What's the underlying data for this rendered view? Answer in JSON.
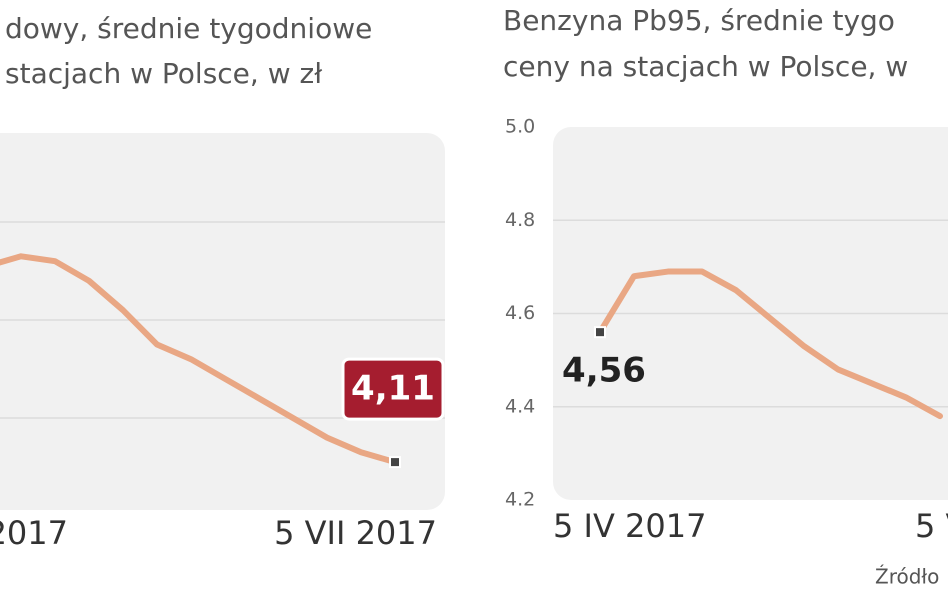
{
  "chart_data": [
    {
      "type": "line",
      "title": [
        "dowy, średnie tygodniowe",
        "stacjach w Polsce, w zł"
      ],
      "categories": [
        "2017",
        null,
        null,
        null,
        null,
        null,
        null,
        null,
        null,
        null,
        null,
        null,
        "5 VII 2017"
      ],
      "series": [
        {
          "color": "#e9a784",
          "values": [
            4.51,
            4.53,
            4.52,
            4.48,
            4.42,
            4.35,
            4.32,
            4.28,
            4.24,
            4.2,
            4.16,
            4.13,
            4.11
          ],
          "value_labels": [
            null,
            null,
            null,
            null,
            null,
            null,
            null,
            null,
            null,
            null,
            null,
            null,
            "4,11"
          ]
        }
      ],
      "ylim": [
        4.0,
        4.8
      ]
    },
    {
      "type": "line",
      "title": [
        "Benzyna Pb95, średnie tygo",
        "ceny na stacjach w Polsce, w"
      ],
      "categories": [
        "5 IV 2017",
        null,
        null,
        null,
        null,
        null,
        null,
        null,
        null,
        null,
        "5 V"
      ],
      "series": [
        {
          "color": "#e9a784",
          "values": [
            4.56,
            4.68,
            4.69,
            4.69,
            4.65,
            4.59,
            4.53,
            4.48,
            4.45,
            4.42,
            4.38
          ],
          "value_labels": [
            "4,56",
            null,
            null,
            null,
            null,
            null,
            null,
            null,
            null,
            null,
            null
          ]
        }
      ],
      "ylim": [
        4.2,
        5.0
      ],
      "yticks": [
        {
          "value": 5.0,
          "label": "5.0"
        },
        4.8,
        4.6,
        4.4,
        4.2
      ],
      "grid": true,
      "source": "Źródło"
    }
  ]
}
